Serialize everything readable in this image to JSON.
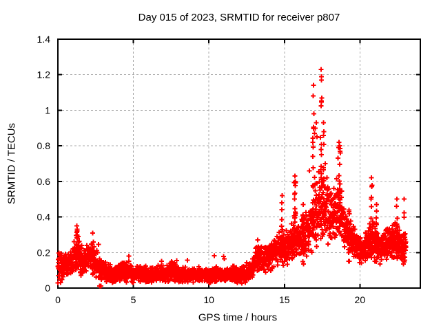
{
  "page": {
    "background": "#ffffff"
  },
  "chart_data": {
    "type": "scatter",
    "title": "Day 015 of 2023, SRMTID for receiver p807",
    "xlabel": "GPS time / hours",
    "ylabel": "SRMTID / TECUs",
    "series_name": "SRMTID",
    "xlim": [
      0,
      24
    ],
    "ylim": [
      0,
      1.4
    ],
    "xticks": {
      "values": [
        0,
        5,
        10,
        15,
        20
      ],
      "labels": [
        "0",
        "5",
        "10",
        "15",
        "20"
      ]
    },
    "yticks": {
      "values": [
        0,
        0.2,
        0.4,
        0.6,
        0.8,
        1.0,
        1.2,
        1.4
      ],
      "labels": [
        "0",
        "0.2",
        "0.4",
        "0.6",
        "0.8",
        "1",
        "1.2",
        "1.4"
      ]
    },
    "grid": {
      "on": true,
      "style": "dashed",
      "color": "#a8a8a8"
    },
    "frame_color": "#000000",
    "marker": {
      "shape": "plus",
      "color": "#ff0000",
      "size": 7,
      "stroke_width": 2
    },
    "legend": "none",
    "x_start": 0.0,
    "x_end": 23.05,
    "points_per_hour": 120,
    "seed": 7,
    "envelope": [
      [
        0.0,
        0.13,
        0.11
      ],
      [
        0.5,
        0.12,
        0.08
      ],
      [
        0.9,
        0.14,
        0.09
      ],
      [
        1.25,
        0.19,
        0.13
      ],
      [
        1.6,
        0.15,
        0.09
      ],
      [
        2.0,
        0.17,
        0.1
      ],
      [
        2.35,
        0.17,
        0.11
      ],
      [
        2.7,
        0.12,
        0.08
      ],
      [
        3.1,
        0.1,
        0.07
      ],
      [
        3.5,
        0.08,
        0.055
      ],
      [
        4.0,
        0.085,
        0.06
      ],
      [
        4.6,
        0.1,
        0.07
      ],
      [
        5.0,
        0.075,
        0.05
      ],
      [
        5.5,
        0.085,
        0.06
      ],
      [
        6.0,
        0.07,
        0.045
      ],
      [
        6.6,
        0.08,
        0.05
      ],
      [
        7.2,
        0.075,
        0.05
      ],
      [
        7.6,
        0.095,
        0.065
      ],
      [
        8.0,
        0.08,
        0.05
      ],
      [
        8.6,
        0.07,
        0.045
      ],
      [
        9.2,
        0.075,
        0.05
      ],
      [
        9.8,
        0.07,
        0.045
      ],
      [
        10.4,
        0.075,
        0.05
      ],
      [
        11.0,
        0.07,
        0.045
      ],
      [
        11.5,
        0.085,
        0.06
      ],
      [
        12.0,
        0.07,
        0.05
      ],
      [
        12.5,
        0.08,
        0.055
      ],
      [
        12.8,
        0.1,
        0.06
      ],
      [
        13.1,
        0.16,
        0.09
      ],
      [
        13.4,
        0.18,
        0.09
      ],
      [
        13.7,
        0.16,
        0.08
      ],
      [
        14.1,
        0.18,
        0.09
      ],
      [
        14.5,
        0.2,
        0.1
      ],
      [
        14.85,
        0.24,
        0.13
      ],
      [
        15.2,
        0.23,
        0.11
      ],
      [
        15.7,
        0.3,
        0.15
      ],
      [
        16.0,
        0.27,
        0.12
      ],
      [
        16.35,
        0.29,
        0.13
      ],
      [
        16.7,
        0.32,
        0.15
      ],
      [
        17.0,
        0.42,
        0.22
      ],
      [
        17.4,
        0.48,
        0.27
      ],
      [
        17.8,
        0.44,
        0.21
      ],
      [
        18.2,
        0.38,
        0.16
      ],
      [
        18.65,
        0.47,
        0.2
      ],
      [
        19.0,
        0.33,
        0.13
      ],
      [
        19.4,
        0.28,
        0.11
      ],
      [
        20.0,
        0.22,
        0.09
      ],
      [
        20.5,
        0.23,
        0.1
      ],
      [
        20.8,
        0.27,
        0.13
      ],
      [
        21.2,
        0.23,
        0.1
      ],
      [
        21.7,
        0.24,
        0.1
      ],
      [
        22.1,
        0.26,
        0.11
      ],
      [
        22.5,
        0.27,
        0.12
      ],
      [
        22.8,
        0.21,
        0.08
      ],
      [
        23.05,
        0.24,
        0.11
      ]
    ],
    "spike_columns": [
      [
        1.25,
        0.08,
        0.33,
        10
      ],
      [
        2.3,
        0.08,
        0.29,
        8
      ],
      [
        13.3,
        0.09,
        0.28,
        8
      ],
      [
        14.85,
        0.14,
        0.5,
        12
      ],
      [
        15.7,
        0.18,
        0.6,
        14
      ],
      [
        16.25,
        0.12,
        0.45,
        10
      ],
      [
        16.92,
        0.3,
        1.1,
        12
      ],
      [
        17.43,
        0.35,
        1.2,
        14
      ],
      [
        17.6,
        0.3,
        0.9,
        10
      ],
      [
        18.65,
        0.3,
        0.8,
        14
      ],
      [
        19.3,
        0.15,
        0.45,
        8
      ],
      [
        20.76,
        0.17,
        0.6,
        10
      ],
      [
        21.1,
        0.14,
        0.45,
        8
      ],
      [
        22.45,
        0.15,
        0.5,
        10
      ],
      [
        22.9,
        0.14,
        0.48,
        8
      ]
    ],
    "outliers": [
      [
        17.43,
        1.23
      ],
      [
        17.45,
        1.19
      ],
      [
        17.46,
        1.17
      ],
      [
        16.93,
        1.14
      ],
      [
        16.9,
        1.08
      ],
      [
        17.47,
        1.07
      ],
      [
        16.95,
        0.98
      ],
      [
        17.1,
        0.93
      ],
      [
        17.6,
        0.93
      ],
      [
        17.05,
        0.9
      ],
      [
        17.62,
        0.88
      ],
      [
        17.0,
        0.87
      ],
      [
        17.15,
        0.85
      ],
      [
        18.62,
        0.82
      ],
      [
        18.66,
        0.8
      ],
      [
        18.59,
        0.79
      ],
      [
        18.68,
        0.77
      ],
      [
        18.71,
        0.76
      ],
      [
        18.55,
        0.73
      ],
      [
        17.7,
        0.7
      ],
      [
        16.65,
        0.66
      ],
      [
        15.7,
        0.63
      ],
      [
        20.76,
        0.62
      ],
      [
        15.72,
        0.6
      ],
      [
        20.78,
        0.57
      ],
      [
        14.85,
        0.52
      ],
      [
        22.45,
        0.5
      ],
      [
        22.92,
        0.5
      ],
      [
        14.83,
        0.48
      ],
      [
        16.25,
        0.47
      ],
      [
        21.1,
        0.47
      ],
      [
        22.42,
        0.46
      ],
      [
        1.25,
        0.35
      ],
      [
        1.28,
        0.33
      ],
      [
        2.3,
        0.31
      ],
      [
        2.75,
        0.012
      ],
      [
        2.85,
        0.012
      ]
    ]
  }
}
